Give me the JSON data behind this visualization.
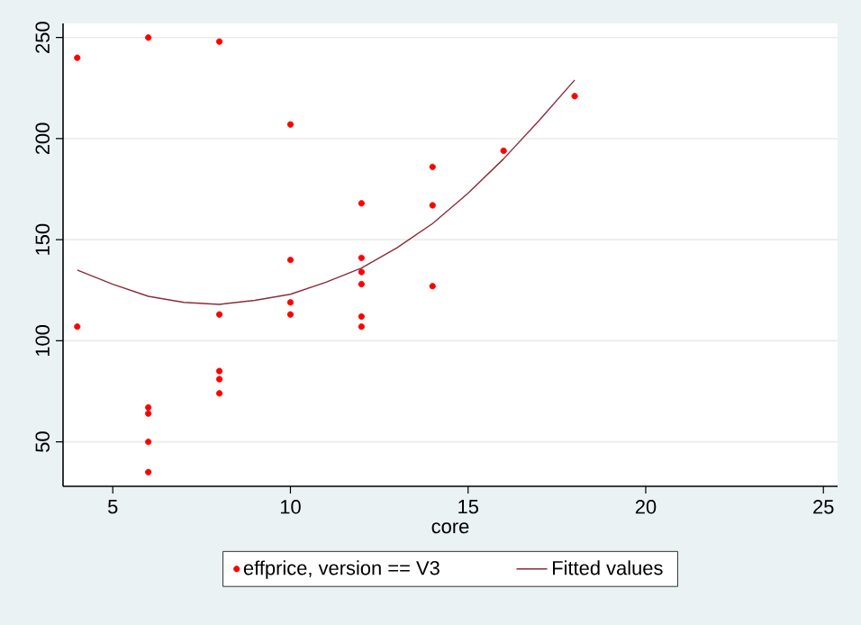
{
  "chart_data": {
    "type": "scatter",
    "xlabel": "core",
    "series": [
      {
        "name": "effprice, version == V3",
        "color": "#ff0000",
        "marker": "circle",
        "x": [
          4,
          4,
          6,
          6,
          6,
          6,
          6,
          8,
          8,
          8,
          8,
          8,
          10,
          10,
          10,
          10,
          12,
          12,
          12,
          12,
          12,
          12,
          14,
          14,
          14,
          16,
          18
        ],
        "values": [
          240,
          107,
          250,
          67,
          64,
          50,
          35,
          248,
          113,
          85,
          81,
          74,
          207,
          140,
          119,
          113,
          168,
          141,
          134,
          128,
          112,
          107,
          186,
          167,
          127,
          194,
          221
        ]
      },
      {
        "name": "Fitted values",
        "type": "line",
        "color": "#8c2b3b",
        "marker": "none",
        "line_style": "solid",
        "x": [
          4,
          5,
          6,
          7,
          8,
          9,
          10,
          11,
          12,
          13,
          14,
          15,
          16,
          17,
          18
        ],
        "values": [
          135,
          128,
          122,
          119,
          118,
          120,
          123,
          129,
          136,
          146,
          158,
          173,
          190,
          209,
          229
        ]
      }
    ],
    "xlim": [
      3.6,
      25.4
    ],
    "xticks": [
      5,
      10,
      15,
      20,
      25
    ],
    "ylim": [
      28,
      257
    ],
    "yticks": [
      50,
      100,
      150,
      200,
      250
    ],
    "grid": "y",
    "legend": "bottom"
  }
}
